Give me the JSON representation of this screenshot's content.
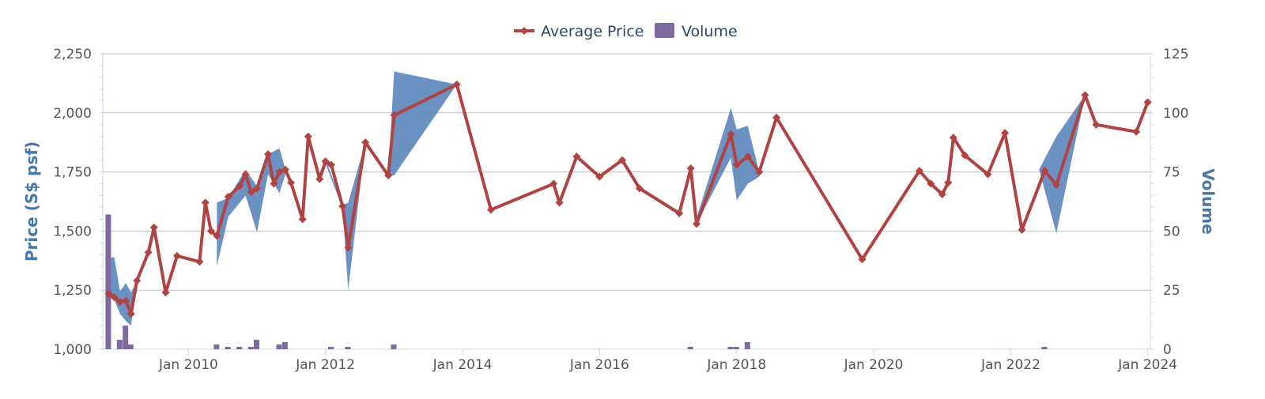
{
  "chart_data": {
    "type": "line",
    "legend": {
      "placement": "top-center",
      "items": [
        {
          "label": "Average Price",
          "color": "#b04343",
          "symbol": "line-diamond"
        },
        {
          "label": "Volume",
          "color": "#7f6aa0",
          "symbol": "square"
        }
      ]
    },
    "x_axis": {
      "type": "date",
      "range": [
        "2008-10-01",
        "2024-01-15"
      ],
      "ticks": [
        "2010-01-01",
        "2012-01-01",
        "2014-01-01",
        "2016-01-01",
        "2018-01-01",
        "2020-01-01",
        "2022-01-01",
        "2024-01-01"
      ],
      "tick_labels": [
        "Jan 2010",
        "Jan 2012",
        "Jan 2014",
        "Jan 2016",
        "Jan 2018",
        "Jan 2020",
        "Jan 2022",
        "Jan 2024"
      ]
    },
    "y_axis_left": {
      "label": "Price (S$ psf)",
      "range": [
        1000,
        2250
      ],
      "ticks": [
        1000,
        1250,
        1500,
        1750,
        2000,
        2250
      ],
      "tick_labels": [
        "1,000",
        "1,250",
        "1,500",
        "1,750",
        "2,000",
        "2,250"
      ],
      "grid": true
    },
    "y_axis_right": {
      "label": "Volume",
      "range": [
        0,
        125
      ],
      "ticks": [
        0,
        25,
        50,
        75,
        100,
        125
      ],
      "tick_labels": [
        "0",
        "25",
        "50",
        "75",
        "100",
        "125"
      ]
    },
    "series": [
      {
        "name": "Average Price",
        "type": "line",
        "color": "#b04343",
        "marker": "diamond",
        "points": [
          [
            "2008-11-01",
            1235
          ],
          [
            "2008-12-01",
            1220
          ],
          [
            "2009-01-01",
            1200
          ],
          [
            "2009-02-01",
            1205
          ],
          [
            "2009-03-01",
            1150
          ],
          [
            "2009-04-01",
            1290
          ],
          [
            "2009-06-01",
            1410
          ],
          [
            "2009-07-01",
            1515
          ],
          [
            "2009-09-01",
            1240
          ],
          [
            "2009-11-01",
            1395
          ],
          [
            "2010-03-01",
            1370
          ],
          [
            "2010-04-01",
            1620
          ],
          [
            "2010-05-01",
            1500
          ],
          [
            "2010-06-01",
            1480
          ],
          [
            "2010-08-01",
            1645
          ],
          [
            "2010-10-01",
            1690
          ],
          [
            "2010-11-01",
            1740
          ],
          [
            "2010-12-01",
            1665
          ],
          [
            "2011-01-01",
            1680
          ],
          [
            "2011-03-01",
            1825
          ],
          [
            "2011-04-01",
            1700
          ],
          [
            "2011-05-01",
            1750
          ],
          [
            "2011-06-01",
            1760
          ],
          [
            "2011-07-01",
            1705
          ],
          [
            "2011-09-01",
            1550
          ],
          [
            "2011-10-01",
            1900
          ],
          [
            "2011-12-01",
            1720
          ],
          [
            "2012-01-01",
            1795
          ],
          [
            "2012-02-01",
            1780
          ],
          [
            "2012-04-01",
            1605
          ],
          [
            "2012-05-01",
            1430
          ],
          [
            "2012-08-01",
            1875
          ],
          [
            "2012-12-01",
            1735
          ],
          [
            "2013-01-01",
            1990
          ],
          [
            "2013-12-01",
            2120
          ],
          [
            "2014-06-01",
            1590
          ],
          [
            "2015-05-01",
            1700
          ],
          [
            "2015-06-01",
            1620
          ],
          [
            "2015-09-01",
            1815
          ],
          [
            "2016-01-01",
            1730
          ],
          [
            "2016-05-01",
            1800
          ],
          [
            "2016-08-01",
            1680
          ],
          [
            "2017-03-01",
            1575
          ],
          [
            "2017-05-01",
            1765
          ],
          [
            "2017-06-01",
            1530
          ],
          [
            "2017-12-01",
            1910
          ],
          [
            "2018-01-01",
            1780
          ],
          [
            "2018-03-01",
            1815
          ],
          [
            "2018-05-01",
            1750
          ],
          [
            "2018-08-01",
            1980
          ],
          [
            "2019-11-01",
            1380
          ],
          [
            "2020-09-01",
            1755
          ],
          [
            "2020-11-01",
            1700
          ],
          [
            "2021-01-01",
            1655
          ],
          [
            "2021-02-01",
            1705
          ],
          [
            "2021-03-01",
            1895
          ],
          [
            "2021-05-01",
            1820
          ],
          [
            "2021-09-01",
            1740
          ],
          [
            "2021-12-01",
            1915
          ],
          [
            "2022-03-01",
            1505
          ],
          [
            "2022-07-01",
            1755
          ],
          [
            "2022-09-01",
            1695
          ],
          [
            "2023-02-01",
            2075
          ],
          [
            "2023-04-01",
            1950
          ],
          [
            "2023-11-01",
            1920
          ],
          [
            "2024-01-01",
            2045
          ]
        ]
      },
      {
        "name": "Price Range",
        "type": "area-range",
        "color": "#5b86bb",
        "segments": [
          [
            [
              "2008-11-01",
              1385,
              1225
            ],
            [
              "2008-12-01",
              1390,
              1210
            ],
            [
              "2009-01-01",
              1245,
              1150
            ],
            [
              "2009-02-01",
              1280,
              1120
            ],
            [
              "2009-03-01",
              1240,
              1100
            ],
            [
              "2009-04-01",
              1290,
              1290
            ]
          ],
          [
            [
              "2010-06-01",
              1620,
              1350
            ],
            [
              "2010-08-01",
              1640,
              1560
            ],
            [
              "2010-11-01",
              1760,
              1650
            ],
            [
              "2011-01-01",
              1690,
              1495
            ],
            [
              "2011-03-01",
              1825,
              1740
            ],
            [
              "2011-05-01",
              1850,
              1660
            ],
            [
              "2011-06-01",
              1760,
              1740
            ]
          ],
          [
            [
              "2012-01-01",
              1805,
              1785
            ],
            [
              "2012-04-01",
              1610,
              1595
            ],
            [
              "2012-05-01",
              1620,
              1250
            ],
            [
              "2012-08-01",
              1875,
              1875
            ]
          ],
          [
            [
              "2012-12-01",
              1735,
              1735
            ],
            [
              "2013-01-01",
              2175,
              1735
            ],
            [
              "2013-12-01",
              2120,
              2120
            ]
          ],
          [
            [
              "2017-06-01",
              1555,
              1530
            ],
            [
              "2017-12-01",
              2020,
              1810
            ],
            [
              "2018-01-01",
              1930,
              1630
            ],
            [
              "2018-03-01",
              1945,
              1700
            ],
            [
              "2018-05-01",
              1750,
              1730
            ]
          ],
          [
            [
              "2022-06-01",
              1760,
              1760
            ],
            [
              "2022-09-01",
              1900,
              1490
            ],
            [
              "2023-02-01",
              2075,
              2075
            ]
          ]
        ]
      },
      {
        "name": "Volume",
        "type": "column",
        "axis": "right",
        "color": "#7f6aa0",
        "points": [
          [
            "2008-11-01",
            57
          ],
          [
            "2009-01-01",
            4
          ],
          [
            "2009-02-01",
            10
          ],
          [
            "2009-03-01",
            2
          ],
          [
            "2010-06-01",
            2
          ],
          [
            "2010-08-01",
            1
          ],
          [
            "2010-10-01",
            1
          ],
          [
            "2010-12-01",
            1
          ],
          [
            "2011-01-01",
            4
          ],
          [
            "2011-05-01",
            2
          ],
          [
            "2011-06-01",
            3
          ],
          [
            "2012-02-01",
            1
          ],
          [
            "2012-05-01",
            1
          ],
          [
            "2013-01-01",
            2
          ],
          [
            "2017-05-01",
            1
          ],
          [
            "2017-12-01",
            1
          ],
          [
            "2018-01-01",
            1
          ],
          [
            "2018-03-01",
            3
          ],
          [
            "2022-07-01",
            1
          ]
        ]
      }
    ]
  }
}
